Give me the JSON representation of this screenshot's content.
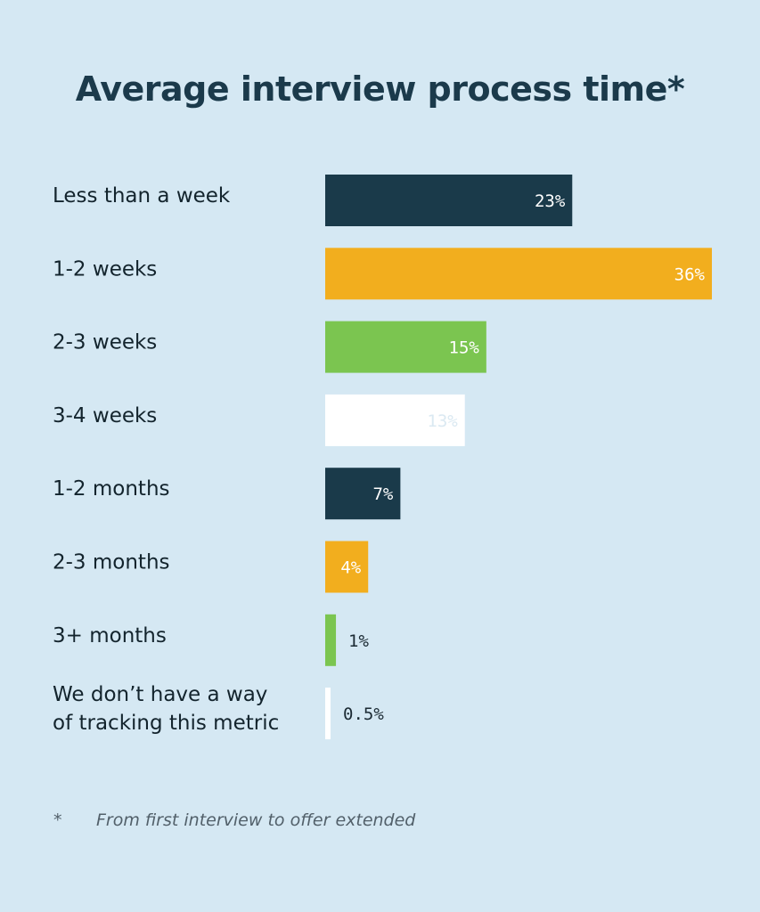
{
  "title": "Average interview process time*",
  "footnote": {
    "marker": "*",
    "text": "From first interview to offer extended"
  },
  "chart_data": {
    "type": "bar",
    "orientation": "horizontal",
    "title": "Average interview process time*",
    "categories": [
      "Less than a week",
      "1-2 weeks",
      "2-3 weeks",
      "3-4 weeks",
      "1-2 months",
      "2-3 months",
      "3+ months",
      "We don’t have a way of tracking this metric"
    ],
    "category_lines": [
      [
        "Less than a week"
      ],
      [
        "1-2 weeks"
      ],
      [
        "2-3 weeks"
      ],
      [
        "3-4 weeks"
      ],
      [
        "1-2 months"
      ],
      [
        "2-3 months"
      ],
      [
        "3+ months"
      ],
      [
        "We don’t have a way",
        "of tracking this metric"
      ]
    ],
    "values": [
      23,
      36,
      15,
      13,
      7,
      4,
      1,
      0.5
    ],
    "value_labels": [
      "23%",
      "36%",
      "15%",
      "13%",
      "7%",
      "4%",
      "1%",
      "0.5%"
    ],
    "bar_colors": [
      "#1a3a4a",
      "#f2ae1e",
      "#7bc550",
      "#ffffff",
      "#1a3a4a",
      "#f2ae1e",
      "#7bc550",
      "#ffffff"
    ],
    "label_colors": [
      "#ffffff",
      "#ffffff",
      "#ffffff",
      "#dbe9f2",
      "#ffffff",
      "#ffffff",
      "#1b2a33",
      "#1b2a33"
    ],
    "label_inside": [
      true,
      true,
      true,
      true,
      true,
      true,
      false,
      false
    ],
    "xlim": [
      0,
      36
    ],
    "grid": false,
    "legend": "none"
  }
}
